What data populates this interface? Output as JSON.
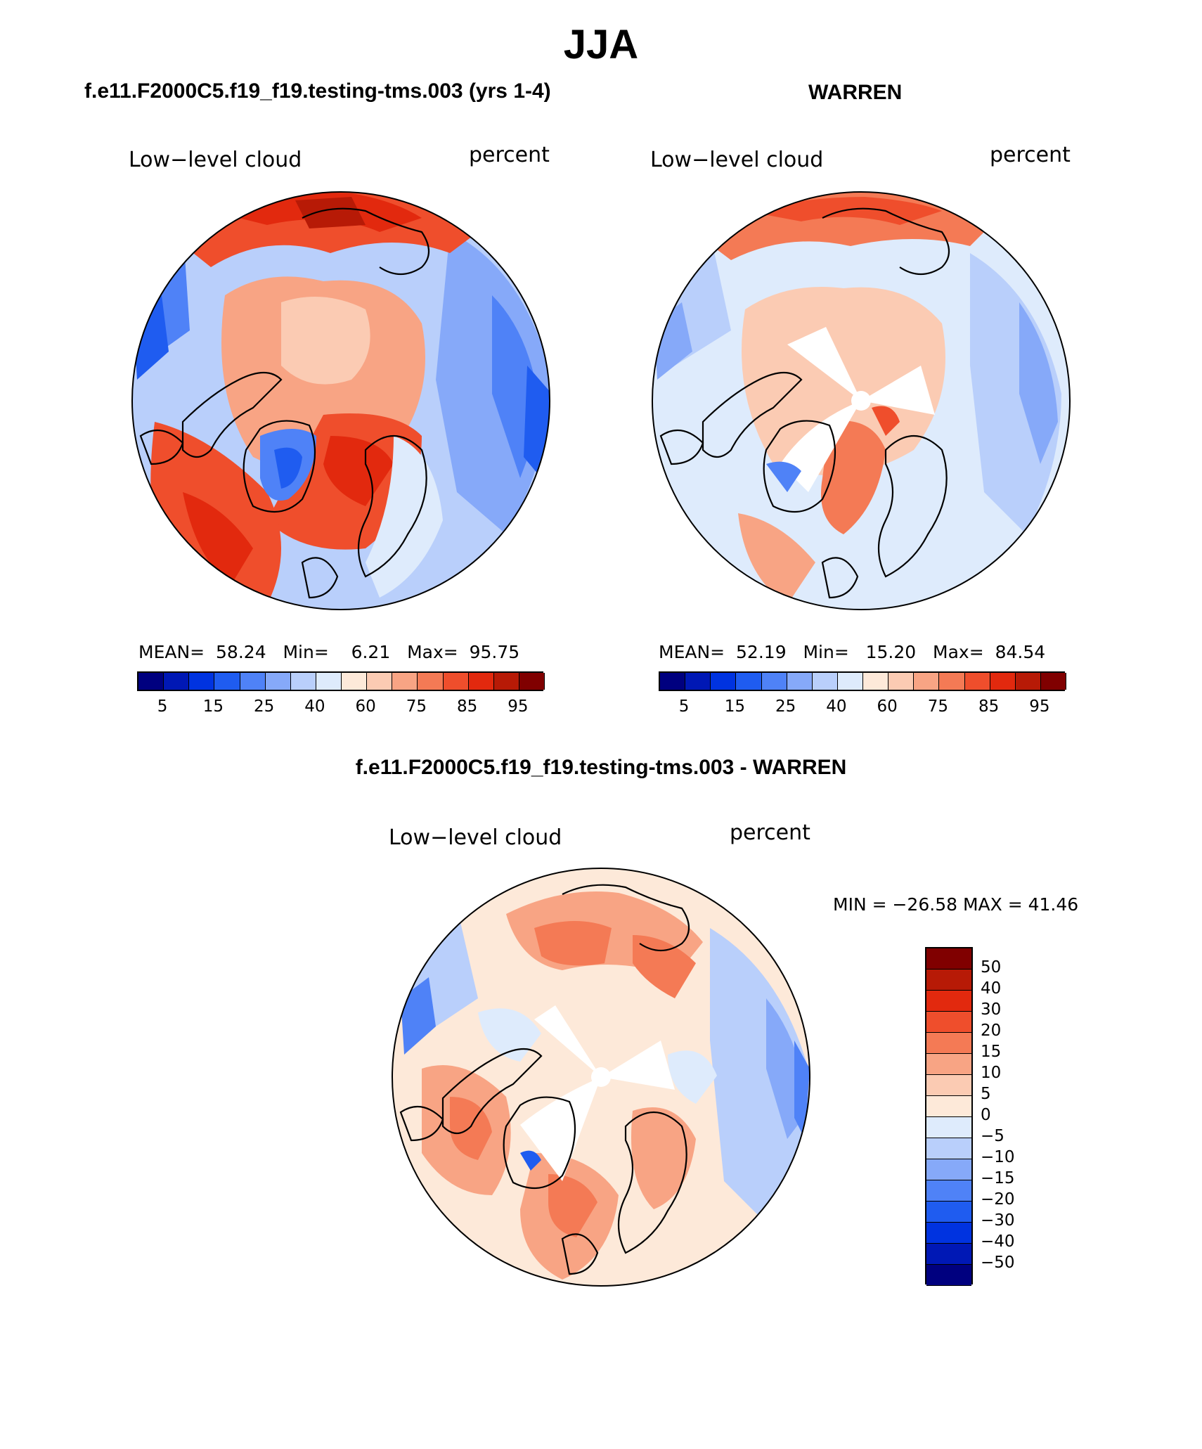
{
  "page_title": "JJA",
  "panels": {
    "model": {
      "title": "f.e11.F2000C5.f19_f19.testing-tms.003 (yrs 1-4)",
      "variable": "Low−level cloud",
      "units": "percent",
      "stats": {
        "mean_label": "MEAN=",
        "mean": "58.24",
        "min_label": "Min=",
        "min": "6.21",
        "max_label": "Max=",
        "max": "95.75"
      }
    },
    "obs": {
      "title": "WARREN",
      "variable": "Low−level cloud",
      "units": "percent",
      "stats": {
        "mean_label": "MEAN=",
        "mean": "52.19",
        "min_label": "Min=",
        "min": "15.20",
        "max_label": "Max=",
        "max": "84.54"
      }
    },
    "diff": {
      "title": "f.e11.F2000C5.f19_f19.testing-tms.003 - WARREN",
      "variable": "Low−level cloud",
      "units": "percent",
      "minmax": "MIN = −26.58 MAX =  41.46"
    }
  },
  "colorbars": {
    "abs": {
      "colors": [
        "#00007f",
        "#0018b5",
        "#0033e0",
        "#1f5cf0",
        "#4f82f7",
        "#86a9f9",
        "#b9cffb",
        "#deebfc",
        "#fde9d9",
        "#fbcbb3",
        "#f8a484",
        "#f47a55",
        "#ef4e2c",
        "#e2290e",
        "#b71a06",
        "#800000"
      ],
      "labels": [
        "5",
        "15",
        "25",
        "40",
        "60",
        "75",
        "85",
        "95"
      ]
    },
    "diff": {
      "colors": [
        "#800000",
        "#b71a06",
        "#e2290e",
        "#ef4e2c",
        "#f47a55",
        "#f8a484",
        "#fbcbb3",
        "#fde9d9",
        "#deebfc",
        "#b9cffb",
        "#86a9f9",
        "#4f82f7",
        "#1f5cf0",
        "#0033e0",
        "#0018b5",
        "#00007f"
      ],
      "labels": [
        "50",
        "40",
        "30",
        "20",
        "15",
        "10",
        "5",
        "0",
        "−5",
        "−10",
        "−15",
        "−20",
        "−30",
        "−40",
        "−50"
      ]
    }
  }
}
